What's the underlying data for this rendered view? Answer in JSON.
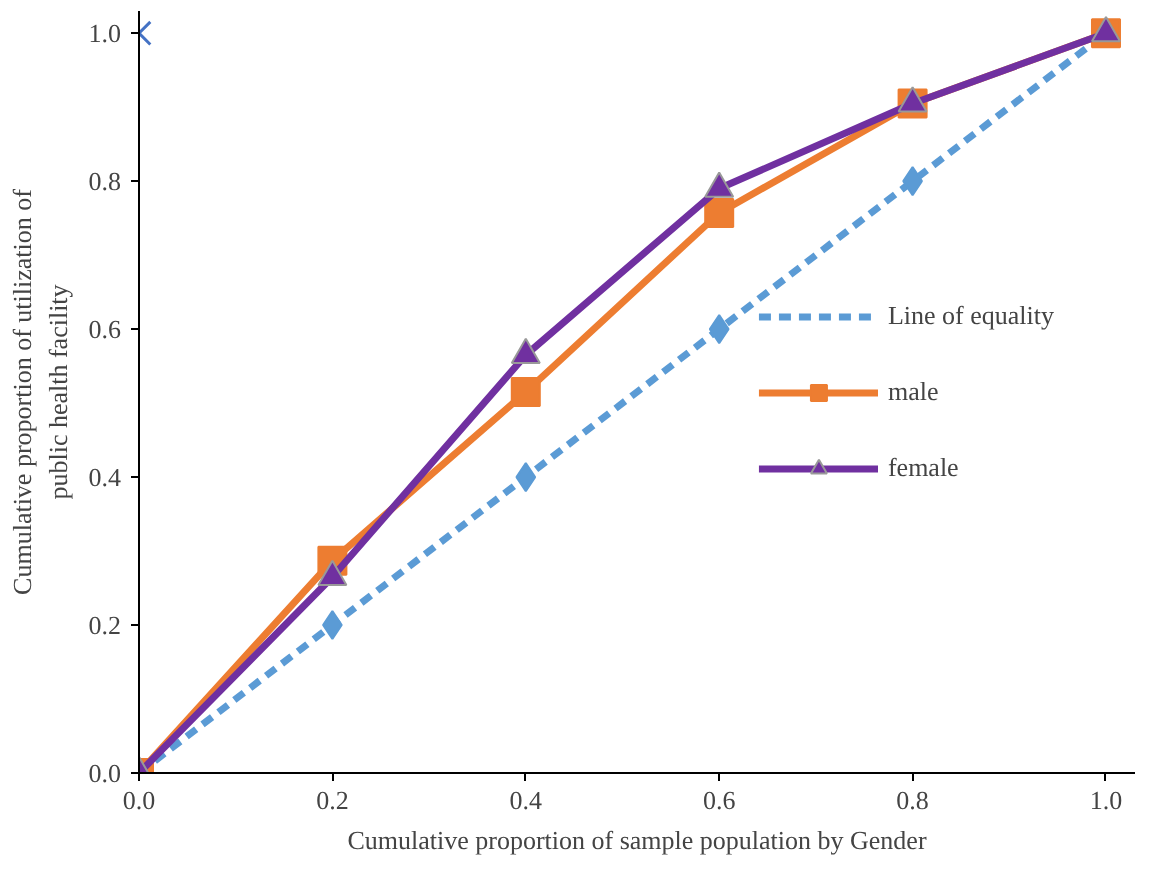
{
  "chart_data": {
    "type": "line",
    "xlabel": "Cumulative proportion of sample population by Gender",
    "ylabel": "Cumulative proportion of utilization of public health facility",
    "x": [
      0,
      0.2,
      0.4,
      0.6,
      0.8,
      1.0
    ],
    "series": [
      {
        "name": "Line of equality",
        "color": "#5b9bd5",
        "values": [
          0,
          0.2,
          0.4,
          0.6,
          0.8,
          1.0
        ],
        "marker": "diamond",
        "line_style": "dashed"
      },
      {
        "name": "male",
        "color": "#ed7d31",
        "values": [
          0,
          0.287,
          0.515,
          0.757,
          0.905,
          1.0
        ],
        "marker": "square",
        "line_style": "solid"
      },
      {
        "name": "female",
        "color": "#7030a0",
        "values": [
          0,
          0.265,
          0.565,
          0.79,
          0.905,
          1.0
        ],
        "marker": "triangle",
        "line_style": "solid"
      },
      {
        "type": "scatter",
        "color": "#4472c4",
        "x": [
          0
        ],
        "values": [
          1.0
        ],
        "marker": "cross"
      }
    ],
    "xlim": [
      0,
      1.03
    ],
    "ylim": [
      0,
      1.03
    ],
    "xticks": [
      {
        "value": 0,
        "label": "0.0"
      },
      {
        "value": 0.2,
        "label": "0.2"
      },
      {
        "value": 0.4,
        "label": "0.4"
      },
      {
        "value": 0.6,
        "label": "0.6"
      },
      {
        "value": 0.8,
        "label": "0.8"
      },
      {
        "value": 1.0,
        "label": "1.0"
      }
    ],
    "yticks": [
      {
        "value": 0,
        "label": "0.0"
      },
      {
        "value": 0.2,
        "label": "0.2"
      },
      {
        "value": 0.4,
        "label": "0.4"
      },
      {
        "value": 0.6,
        "label": "0.6"
      },
      {
        "value": 0.8,
        "label": "0.8"
      },
      {
        "value": 1.0,
        "label": "1.0"
      }
    ],
    "grid": false,
    "legend": "right"
  }
}
